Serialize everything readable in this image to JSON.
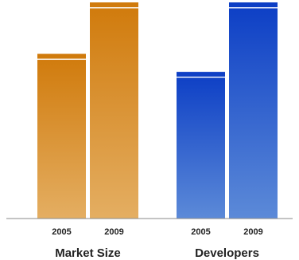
{
  "chart_data": {
    "type": "bar",
    "groups": [
      {
        "name": "Market Size",
        "categories": [
          "2005",
          "2009"
        ],
        "values": [
          64,
          84
        ],
        "color_top": "#d07a0b",
        "color_bottom": "#e4ae62"
      },
      {
        "name": "Developers",
        "categories": [
          "2005",
          "2009"
        ],
        "values": [
          57,
          84
        ],
        "color_top": "#0c3ec5",
        "color_bottom": "#5c8ad8"
      }
    ],
    "ylim": [
      0,
      84
    ],
    "grid": false,
    "title": "",
    "xlabel": "",
    "ylabel": ""
  }
}
